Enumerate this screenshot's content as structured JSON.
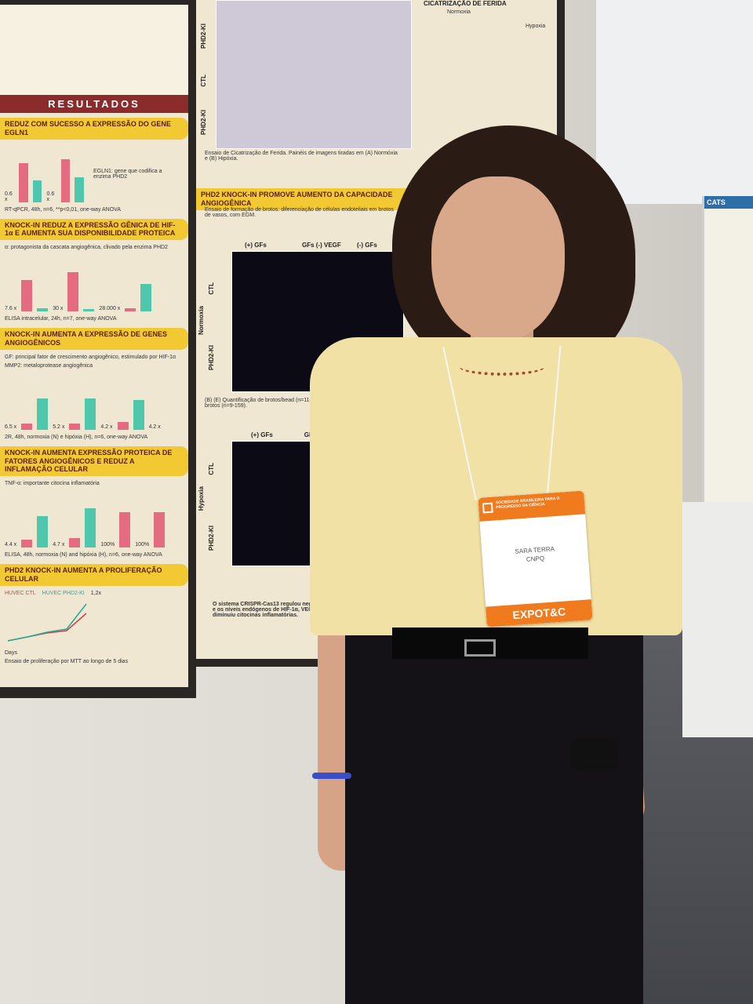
{
  "poster_left": {
    "header_banner": "RESULTADOS",
    "sections": [
      {
        "title": "REDUZ COM SUCESSO A EXPRESSÃO DO GENE EGLN1",
        "note": "EGLN1: gene que codifica a enzima PHD2",
        "method": "RT-qPCR, 48h, n=6, **p<0,01, one-way ANOVA",
        "labels": [
          "0.6 x",
          "0.6 x"
        ]
      },
      {
        "title": "KNOCK-IN REDUZ A EXPRESSÃO GÊNICA DE HIF-1α E AUMENTA SUA DISPONIBILIDADE PROTEICA",
        "note": "α: protagonista da cascata angiogênica, clivado pela enzima PHD2",
        "labels": [
          "7.6 x",
          "30 x",
          "28.000 x"
        ],
        "method": "ELISA intracelular, 24h, n=7, one-way ANOVA"
      },
      {
        "title": "KNOCK-IN AUMENTA A EXPRESSÃO DE GENES ANGIOGÊNICOS",
        "note": "GF: principal fator de crescimento angiogênico, estimulado por HIF-1α",
        "note2": "MMP2: metaloprotease angiogênica",
        "labels": [
          "6.5 x",
          "5.2 x",
          "4.2 x",
          "4.2 x"
        ],
        "method": "2R, 48h, normoxia (N) e hipóxia (H), n=6, one-way ANOVA"
      },
      {
        "title": "KNOCK-IN AUMENTA EXPRESSÃO PROTEICA DE FATORES ANGIOGÊNICOS E REDUZ A INFLAMAÇÃO CELULAR",
        "note": "TNF-α: importante citocina inflamatória",
        "labels": [
          "4.4 x",
          "4.7 x",
          "100%",
          "100%"
        ],
        "method": "ELISA, 48h, normoxia (N) and hipóxia (H), n=6, one-way ANOVA"
      },
      {
        "title": "PHD2 KNOCK-IN AUMENTA A PROLIFERAÇÃO CELULAR",
        "legend": [
          "HUVEC CTL",
          "HUVEC PHD2-KI"
        ],
        "label": "1,2x",
        "note": "Ensaio de proliferação por MTT ao longo de 5 dias",
        "xlabel": "Days"
      }
    ],
    "axis_labels": [
      "CTL",
      "PHD2-KI",
      "CTL",
      "PHD2-KI"
    ]
  },
  "poster_right": {
    "wound_title": "CICATRIZAÇÃO DE FERIDA",
    "panels": [
      "Normoxia",
      "Hypoxia"
    ],
    "row_labels": [
      "PHD2-KI",
      "CTL",
      "Hypoxia",
      "PHD2-KI"
    ],
    "wound_caption": "Ensaio de Cicatrização de Ferida. Painéis de imagens tiradas em (A) Normóxia e (B) Hipóxia.",
    "sprout_title": "PHD2 KNOCK-IN PROMOVE AUMENTO DA CAPACIDADE ANGIOGÊNICA",
    "sprout_note": "Ensaio de formação de brotos: diferenciação de células endoteliais em brotos de vasos, com EGM.",
    "column_headers": [
      "(+) GFs",
      "GFs (-) VEGF",
      "(-) GFs"
    ],
    "rows_a": [
      "Normoxia",
      "CTL",
      "PHD2-KI"
    ],
    "rows_d": [
      "Hypoxia",
      "CTL",
      "PHD2-KI"
    ],
    "quant_caption": "(B) (E) Quantificação de brotos/bead (n=11-24). (C) (F) Comprimento (µm) dos brotos (n=9-159).",
    "conclusion": "O sistema CRISPR-Cas13 regulou negativamente PHD2 e os níveis endógenos de HIF-1α, VEGFA e MMP2, e diminuiu citocinas inflamatórias."
  },
  "badge": {
    "org": "SOCIEDADE BRASILEIRA PARA O PROGRESSO DA CIÊNCIA",
    "name": "SARA TERRA",
    "affiliation": "CNPQ",
    "event": "EXPOT&C"
  },
  "colors": {
    "badge_orange": "#f07b1e",
    "banner_red": "#8b2b2b",
    "section_yellow": "#f2c833",
    "shirt": "#f2e1a4"
  }
}
